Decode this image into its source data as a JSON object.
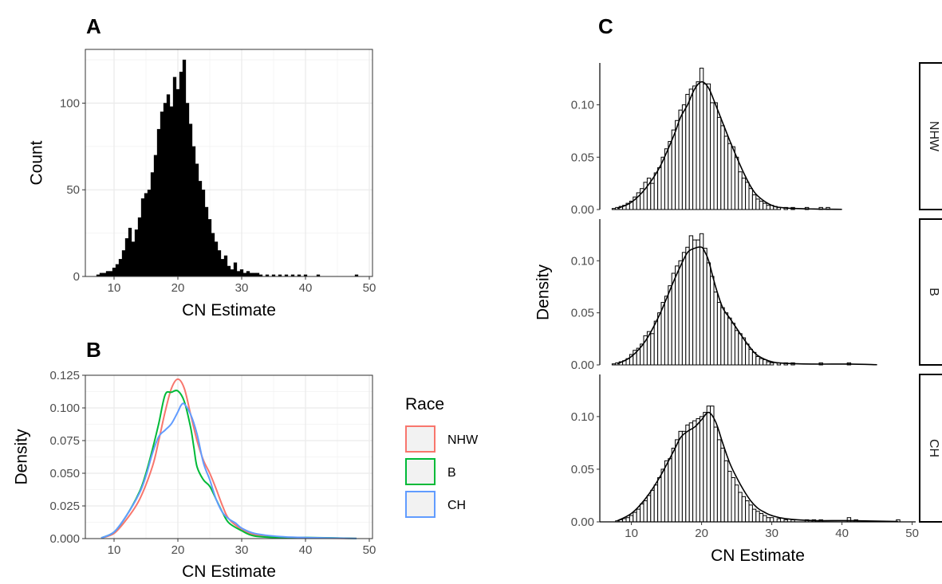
{
  "panels": {
    "a": {
      "letter": "A"
    },
    "b": {
      "letter": "B"
    },
    "c": {
      "letter": "C"
    }
  },
  "legend": {
    "title": "Race",
    "items": [
      {
        "label": "NHW",
        "color": "#F8766D"
      },
      {
        "label": "B",
        "color": "#00BA38"
      },
      {
        "label": "CH",
        "color": "#619CFF"
      }
    ]
  },
  "chart_data": [
    {
      "panel": "A",
      "type": "bar",
      "subtype": "histogram",
      "title": "",
      "xlabel": "CN Estimate",
      "ylabel": "Count",
      "xlim": [
        5.5,
        50.5
      ],
      "ylim": [
        0,
        131
      ],
      "xticks": [
        10,
        20,
        30,
        40,
        50
      ],
      "yticks": [
        0,
        50,
        100
      ],
      "bin_width": 0.5,
      "bar_color": "#000000",
      "theme": "bw",
      "grid": true,
      "x": [
        7.5,
        8,
        8.5,
        9,
        9.5,
        10,
        10.5,
        11,
        11.5,
        12,
        12.5,
        13,
        13.5,
        14,
        14.5,
        15,
        15.5,
        16,
        16.5,
        17,
        17.5,
        18,
        18.5,
        19,
        19.5,
        20,
        20.5,
        21,
        21.5,
        22,
        22.5,
        23,
        23.5,
        24,
        24.5,
        25,
        25.5,
        26,
        26.5,
        27,
        27.5,
        28,
        28.5,
        29,
        29.5,
        30,
        30.5,
        31,
        31.5,
        32,
        32.5,
        33,
        34,
        35,
        36,
        37,
        38,
        39,
        40,
        42,
        48
      ],
      "values": [
        1,
        2,
        2,
        3,
        3,
        5,
        7,
        10,
        15,
        22,
        28,
        20,
        27,
        34,
        45,
        48,
        50,
        60,
        70,
        85,
        95,
        100,
        105,
        98,
        115,
        108,
        118,
        125,
        100,
        88,
        75,
        65,
        55,
        50,
        40,
        33,
        25,
        20,
        15,
        10,
        12,
        6,
        4,
        8,
        3,
        4,
        2,
        3,
        2,
        2,
        2,
        1,
        1,
        1,
        1,
        1,
        1,
        1,
        1,
        1,
        1
      ]
    },
    {
      "panel": "B",
      "type": "line",
      "subtype": "density",
      "title": "",
      "xlabel": "CN Estimate",
      "ylabel": "Density",
      "xlim": [
        5.5,
        50.5
      ],
      "ylim": [
        0,
        0.125
      ],
      "xticks": [
        10,
        20,
        30,
        40,
        50
      ],
      "yticks": [
        0.0,
        0.025,
        0.05,
        0.075,
        0.1,
        0.125
      ],
      "ytick_labels": [
        "0.000",
        "0.025",
        "0.050",
        "0.075",
        "0.100",
        "0.125"
      ],
      "theme": "bw",
      "grid": true,
      "legend_position": "right",
      "series": [
        {
          "name": "NHW",
          "color": "#F8766D",
          "points": [
            [
              8,
              0.0005
            ],
            [
              10,
              0.004
            ],
            [
              12,
              0.015
            ],
            [
              14,
              0.03
            ],
            [
              16,
              0.055
            ],
            [
              17,
              0.075
            ],
            [
              18,
              0.097
            ],
            [
              19,
              0.115
            ],
            [
              20,
              0.122
            ],
            [
              21,
              0.115
            ],
            [
              22,
              0.095
            ],
            [
              23,
              0.075
            ],
            [
              24,
              0.06
            ],
            [
              25,
              0.05
            ],
            [
              26,
              0.038
            ],
            [
              27,
              0.025
            ],
            [
              28,
              0.015
            ],
            [
              30,
              0.007
            ],
            [
              32,
              0.003
            ],
            [
              35,
              0.001
            ],
            [
              40,
              0.0005
            ],
            [
              48,
              0.0001
            ]
          ]
        },
        {
          "name": "B",
          "color": "#00BA38",
          "points": [
            [
              8,
              0.0005
            ],
            [
              10,
              0.005
            ],
            [
              12,
              0.018
            ],
            [
              14,
              0.036
            ],
            [
              15,
              0.05
            ],
            [
              16,
              0.068
            ],
            [
              17,
              0.088
            ],
            [
              18,
              0.11
            ],
            [
              19,
              0.112
            ],
            [
              20,
              0.113
            ],
            [
              21,
              0.105
            ],
            [
              22,
              0.085
            ],
            [
              22.5,
              0.07
            ],
            [
              23,
              0.055
            ],
            [
              24,
              0.045
            ],
            [
              25,
              0.04
            ],
            [
              26,
              0.03
            ],
            [
              27,
              0.02
            ],
            [
              28,
              0.012
            ],
            [
              30,
              0.006
            ],
            [
              32,
              0.002
            ],
            [
              36,
              0.0008
            ],
            [
              41,
              0.0008
            ],
            [
              48,
              0.0001
            ]
          ]
        },
        {
          "name": "CH",
          "color": "#619CFF",
          "points": [
            [
              8,
              0.0005
            ],
            [
              10,
              0.005
            ],
            [
              12,
              0.018
            ],
            [
              14,
              0.035
            ],
            [
              15,
              0.048
            ],
            [
              16,
              0.065
            ],
            [
              17,
              0.078
            ],
            [
              18,
              0.083
            ],
            [
              19,
              0.088
            ],
            [
              20,
              0.097
            ],
            [
              20.5,
              0.102
            ],
            [
              21,
              0.103
            ],
            [
              22,
              0.095
            ],
            [
              23,
              0.08
            ],
            [
              24,
              0.058
            ],
            [
              25,
              0.045
            ],
            [
              26,
              0.03
            ],
            [
              27,
              0.02
            ],
            [
              28,
              0.015
            ],
            [
              29,
              0.012
            ],
            [
              30,
              0.008
            ],
            [
              32,
              0.004
            ],
            [
              36,
              0.0015
            ],
            [
              40,
              0.0008
            ],
            [
              48,
              0.0001
            ]
          ]
        }
      ]
    },
    {
      "panel": "C",
      "type": "bar",
      "subtype": "faceted histogram with density",
      "title": "",
      "xlabel": "CN Estimate",
      "ylabel": "Density",
      "xlim": [
        5.5,
        50.5
      ],
      "ylim": [
        0,
        0.14
      ],
      "xticks": [
        10,
        20,
        30,
        40,
        50
      ],
      "yticks": [
        0.0,
        0.05,
        0.1
      ],
      "ytick_labels": [
        "0.00",
        "0.05",
        "0.10"
      ],
      "bin_width": 0.5,
      "theme": "classic",
      "grid": false,
      "facets": [
        {
          "label": "NHW",
          "x": [
            7.5,
            8,
            8.5,
            9,
            9.5,
            10,
            10.5,
            11,
            11.5,
            12,
            12.5,
            13,
            13.5,
            14,
            14.5,
            15,
            15.5,
            16,
            16.5,
            17,
            17.5,
            18,
            18.5,
            19,
            19.5,
            20,
            20.5,
            21,
            21.5,
            22,
            22.5,
            23,
            23.5,
            24,
            24.5,
            25,
            25.5,
            26,
            26.5,
            27,
            27.5,
            28,
            28.5,
            29,
            29.5,
            30,
            30.5,
            31,
            32,
            33,
            35,
            37,
            38
          ],
          "values": [
            0.001,
            0.002,
            0.003,
            0.004,
            0.006,
            0.008,
            0.012,
            0.016,
            0.02,
            0.026,
            0.03,
            0.025,
            0.035,
            0.04,
            0.05,
            0.058,
            0.065,
            0.076,
            0.085,
            0.095,
            0.1,
            0.11,
            0.115,
            0.118,
            0.122,
            0.135,
            0.12,
            0.12,
            0.102,
            0.102,
            0.088,
            0.08,
            0.07,
            0.063,
            0.06,
            0.05,
            0.036,
            0.03,
            0.026,
            0.02,
            0.014,
            0.01,
            0.008,
            0.006,
            0.004,
            0.004,
            0.003,
            0.002,
            0.002,
            0.002,
            0.002,
            0.002,
            0.002
          ],
          "density_curve": [
            [
              8,
              0.001
            ],
            [
              10,
              0.007
            ],
            [
              12,
              0.02
            ],
            [
              14,
              0.04
            ],
            [
              16,
              0.07
            ],
            [
              17,
              0.088
            ],
            [
              18,
              0.1
            ],
            [
              19,
              0.115
            ],
            [
              20,
              0.122
            ],
            [
              21,
              0.116
            ],
            [
              22,
              0.1
            ],
            [
              23,
              0.083
            ],
            [
              24,
              0.066
            ],
            [
              25,
              0.05
            ],
            [
              26,
              0.035
            ],
            [
              27,
              0.022
            ],
            [
              28,
              0.013
            ],
            [
              30,
              0.004
            ],
            [
              32,
              0.0015
            ],
            [
              36,
              0.0005
            ],
            [
              40,
              0.0002
            ]
          ]
        },
        {
          "label": "B",
          "x": [
            7.5,
            8,
            8.5,
            9,
            9.5,
            10,
            10.5,
            11,
            11.5,
            12,
            12.5,
            13,
            13.5,
            14,
            14.5,
            15,
            15.5,
            16,
            16.5,
            17,
            17.5,
            18,
            18.5,
            19,
            19.5,
            20,
            20.5,
            21,
            21.5,
            22,
            22.5,
            23,
            23.5,
            24,
            24.5,
            25,
            25.5,
            26,
            26.5,
            27,
            27.5,
            28,
            28.5,
            29,
            29.5,
            30,
            31,
            32,
            33,
            37,
            41
          ],
          "values": [
            0.001,
            0.002,
            0.003,
            0.004,
            0.006,
            0.01,
            0.014,
            0.016,
            0.02,
            0.028,
            0.032,
            0.03,
            0.042,
            0.05,
            0.06,
            0.066,
            0.076,
            0.088,
            0.095,
            0.1,
            0.108,
            0.113,
            0.124,
            0.12,
            0.12,
            0.126,
            0.112,
            0.098,
            0.085,
            0.07,
            0.06,
            0.055,
            0.05,
            0.045,
            0.04,
            0.033,
            0.03,
            0.026,
            0.02,
            0.015,
            0.012,
            0.008,
            0.006,
            0.005,
            0.003,
            0.002,
            0.002,
            0.002,
            0.002,
            0.002,
            0.002
          ],
          "density_curve": [
            [
              8,
              0.001
            ],
            [
              10,
              0.008
            ],
            [
              12,
              0.023
            ],
            [
              14,
              0.048
            ],
            [
              16,
              0.08
            ],
            [
              17,
              0.095
            ],
            [
              18,
              0.108
            ],
            [
              19,
              0.112
            ],
            [
              20,
              0.113
            ],
            [
              20.5,
              0.108
            ],
            [
              21,
              0.1
            ],
            [
              22,
              0.075
            ],
            [
              23,
              0.055
            ],
            [
              24,
              0.045
            ],
            [
              25,
              0.035
            ],
            [
              26,
              0.025
            ],
            [
              27,
              0.016
            ],
            [
              28,
              0.009
            ],
            [
              30,
              0.003
            ],
            [
              32,
              0.0015
            ],
            [
              36,
              0.0008
            ],
            [
              41,
              0.0008
            ],
            [
              45,
              0.0002
            ]
          ]
        },
        {
          "label": "CH",
          "x": [
            8,
            8.5,
            9,
            9.5,
            10,
            10.5,
            11,
            11.5,
            12,
            12.5,
            13,
            13.5,
            14,
            14.5,
            15,
            15.5,
            16,
            16.5,
            17,
            17.5,
            18,
            18.5,
            19,
            19.5,
            20,
            20.5,
            21,
            21.5,
            22,
            22.5,
            23,
            23.5,
            24,
            24.5,
            25,
            25.5,
            26,
            26.5,
            27,
            27.5,
            28,
            28.5,
            29,
            29.5,
            30,
            31,
            32,
            33,
            35,
            36,
            37,
            41,
            42,
            48
          ],
          "values": [
            0.001,
            0.002,
            0.003,
            0.004,
            0.006,
            0.009,
            0.012,
            0.017,
            0.02,
            0.025,
            0.03,
            0.035,
            0.042,
            0.05,
            0.058,
            0.06,
            0.07,
            0.078,
            0.086,
            0.086,
            0.092,
            0.094,
            0.096,
            0.098,
            0.1,
            0.104,
            0.11,
            0.11,
            0.09,
            0.078,
            0.07,
            0.058,
            0.048,
            0.042,
            0.035,
            0.028,
            0.024,
            0.02,
            0.016,
            0.012,
            0.01,
            0.008,
            0.006,
            0.004,
            0.004,
            0.003,
            0.002,
            0.002,
            0.002,
            0.002,
            0.002,
            0.004,
            0.002,
            0.002
          ],
          "density_curve": [
            [
              8,
              0.001
            ],
            [
              10,
              0.008
            ],
            [
              12,
              0.022
            ],
            [
              14,
              0.042
            ],
            [
              16,
              0.067
            ],
            [
              17,
              0.08
            ],
            [
              18,
              0.086
            ],
            [
              19,
              0.09
            ],
            [
              20,
              0.097
            ],
            [
              21,
              0.104
            ],
            [
              22,
              0.095
            ],
            [
              23,
              0.075
            ],
            [
              24,
              0.056
            ],
            [
              25,
              0.042
            ],
            [
              26,
              0.03
            ],
            [
              27,
              0.02
            ],
            [
              28,
              0.013
            ],
            [
              29,
              0.009
            ],
            [
              30,
              0.006
            ],
            [
              32,
              0.003
            ],
            [
              36,
              0.0012
            ],
            [
              41,
              0.0012
            ],
            [
              48,
              0.0003
            ]
          ]
        }
      ]
    }
  ]
}
